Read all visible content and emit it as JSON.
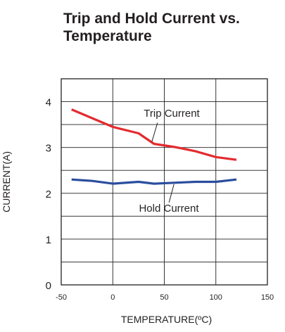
{
  "title_lines": [
    "Trip and Hold Current vs.",
    "Temperature"
  ],
  "chart_data": {
    "type": "line",
    "xlabel": "TEMPERATURE(ºC)",
    "ylabel": "CURRENT(A)",
    "xlim": [
      -50,
      150
    ],
    "ylim": [
      0,
      4.5
    ],
    "x_ticks": [
      -50,
      0,
      50,
      100,
      150
    ],
    "y_ticks": [
      0,
      1,
      2,
      3,
      4
    ],
    "grid": true,
    "series": [
      {
        "name": "Trip Current",
        "color": "#e32b2f",
        "x": [
          -40,
          -20,
          0,
          25,
          40,
          60,
          80,
          100,
          120
        ],
        "y": [
          3.83,
          3.64,
          3.45,
          3.31,
          3.08,
          3.01,
          2.92,
          2.79,
          2.73
        ]
      },
      {
        "name": "Hold Current",
        "color": "#2a4e9e",
        "x": [
          -40,
          -20,
          0,
          25,
          40,
          60,
          80,
          100,
          120
        ],
        "y": [
          2.3,
          2.27,
          2.21,
          2.25,
          2.21,
          2.23,
          2.25,
          2.25,
          2.3
        ]
      }
    ],
    "annotations": [
      {
        "text": "Trip Current",
        "series": 0,
        "at_x": 40
      },
      {
        "text": "Hold Current",
        "series": 1,
        "at_x": 58
      }
    ]
  }
}
